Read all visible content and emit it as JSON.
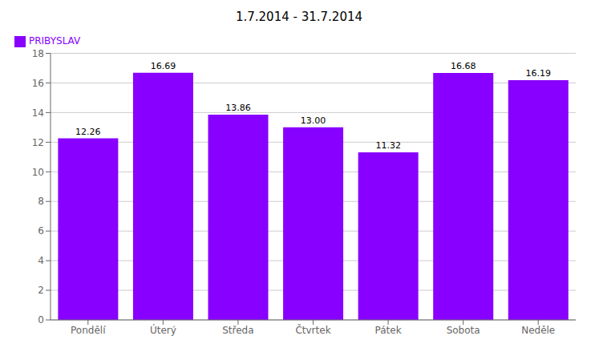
{
  "chart_data": {
    "type": "bar",
    "title": "1.7.2014 - 31.7.2014",
    "categories": [
      "Pondělí",
      "Úterý",
      "Středa",
      "Čtvrtek",
      "Pátek",
      "Sobota",
      "Neděle"
    ],
    "series": [
      {
        "name": "PRIBYSLAV",
        "color": "#8800ff",
        "values": [
          12.26,
          16.69,
          13.86,
          13.0,
          11.32,
          16.68,
          16.19
        ],
        "value_labels": [
          "12.26",
          "16.69",
          "13.86",
          "13.00",
          "11.32",
          "16.68",
          "16.19"
        ]
      }
    ],
    "ylim": [
      0,
      18
    ],
    "yticks": [
      0,
      2,
      4,
      6,
      8,
      10,
      12,
      14,
      16,
      18
    ],
    "grid": true,
    "legend": "upper left",
    "data_labels": true
  }
}
